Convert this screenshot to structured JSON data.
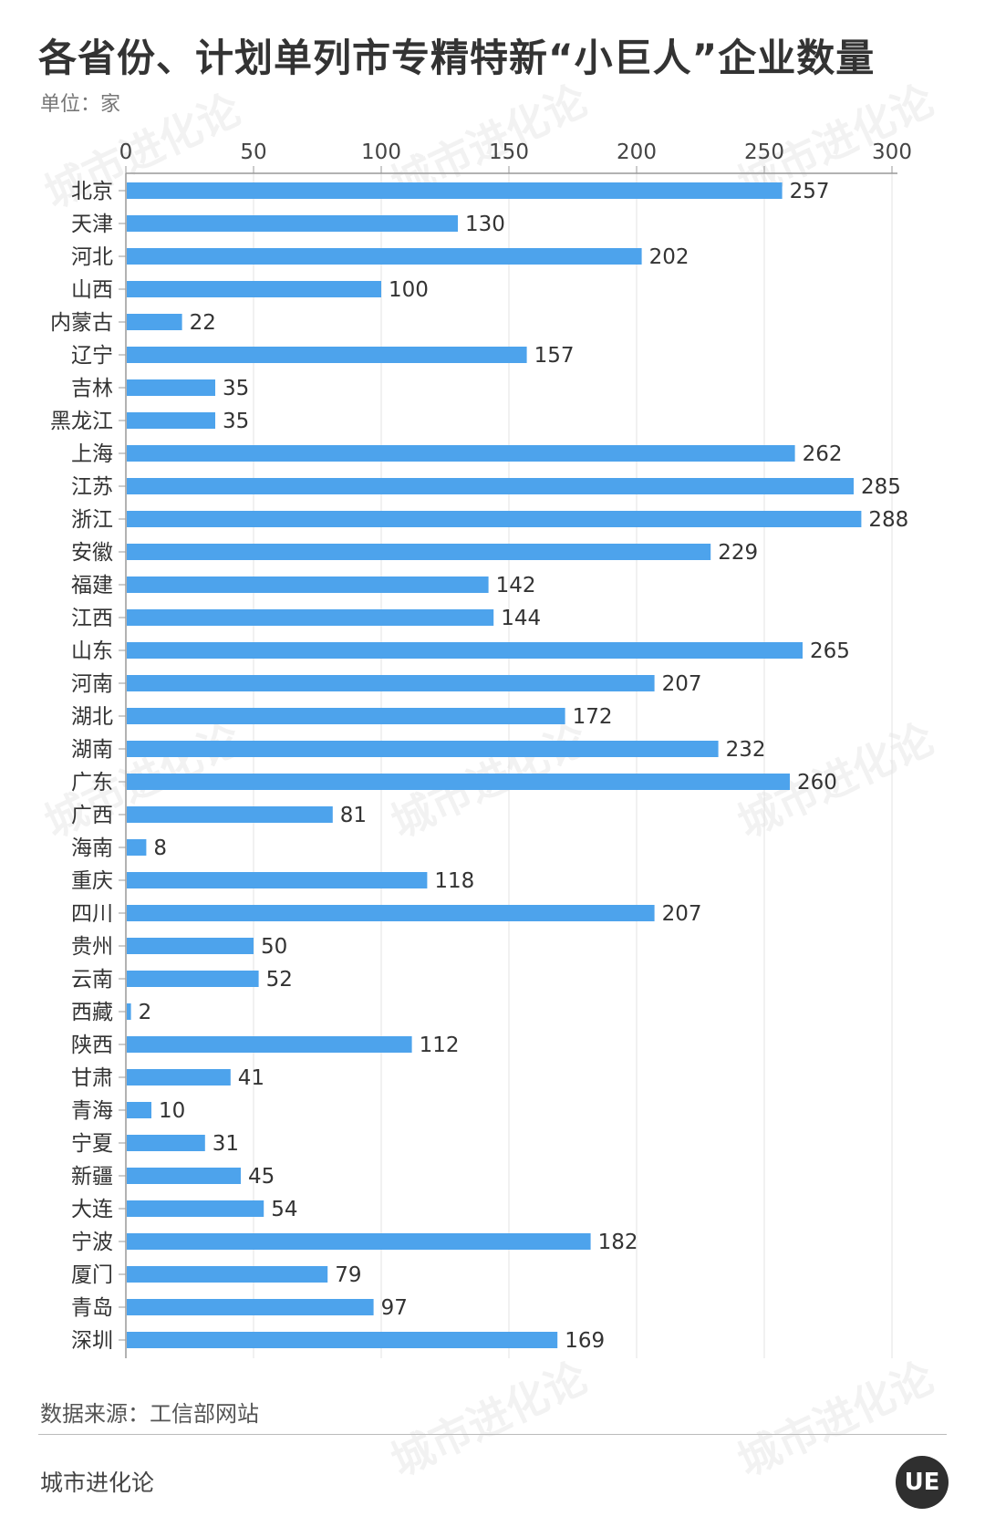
{
  "header": {
    "title": "各省份、计划单列市专精特新“小巨人”企业数量",
    "unit": "单位：家"
  },
  "footer": {
    "source": "数据来源：工信部网站",
    "brand": "城市进化论",
    "logo_text": "UE",
    "watermark_text": "城市进化论"
  },
  "chart_data": {
    "type": "bar",
    "orientation": "horizontal",
    "xlim": [
      0,
      300
    ],
    "ticks": [
      0,
      50,
      100,
      150,
      200,
      250,
      300
    ],
    "bar_color": "#4da3ec",
    "categories": [
      "北京",
      "天津",
      "河北",
      "山西",
      "内蒙古",
      "辽宁",
      "吉林",
      "黑龙江",
      "上海",
      "江苏",
      "浙江",
      "安徽",
      "福建",
      "江西",
      "山东",
      "河南",
      "湖北",
      "湖南",
      "广东",
      "广西",
      "海南",
      "重庆",
      "四川",
      "贵州",
      "云南",
      "西藏",
      "陕西",
      "甘肃",
      "青海",
      "宁夏",
      "新疆",
      "大连",
      "宁波",
      "厦门",
      "青岛",
      "深圳"
    ],
    "values": [
      257,
      130,
      202,
      100,
      22,
      157,
      35,
      35,
      262,
      285,
      288,
      229,
      142,
      144,
      265,
      207,
      172,
      232,
      260,
      81,
      8,
      118,
      207,
      50,
      52,
      2,
      112,
      41,
      10,
      31,
      45,
      54,
      182,
      79,
      97,
      169
    ]
  }
}
